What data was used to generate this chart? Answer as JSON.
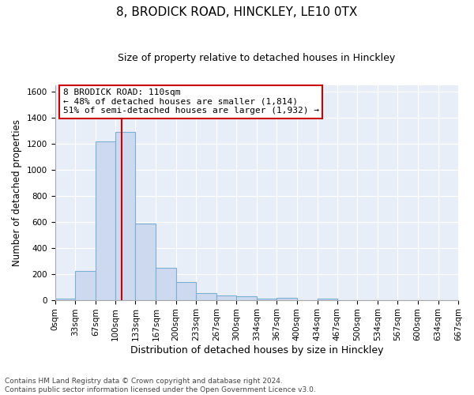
{
  "title": "8, BRODICK ROAD, HINCKLEY, LE10 0TX",
  "subtitle": "Size of property relative to detached houses in Hinckley",
  "xlabel": "Distribution of detached houses by size in Hinckley",
  "ylabel": "Number of detached properties",
  "annotation_line1": "8 BRODICK ROAD: 110sqm",
  "annotation_line2": "← 48% of detached houses are smaller (1,814)",
  "annotation_line3": "51% of semi-detached houses are larger (1,932) →",
  "bar_edges": [
    0,
    33,
    67,
    100,
    133,
    167,
    200,
    233,
    267,
    300,
    334,
    367,
    400,
    434,
    467,
    500,
    534,
    567,
    600,
    634,
    667
  ],
  "bar_heights": [
    10,
    220,
    1220,
    1290,
    590,
    245,
    140,
    55,
    35,
    25,
    10,
    15,
    0,
    10,
    0,
    0,
    0,
    0,
    0,
    0
  ],
  "bar_color": "#ccd9ee",
  "bar_edge_color": "#7bafd4",
  "ref_line_x": 110,
  "ref_line_color": "#cc0000",
  "annotation_box_color": "#ffffff",
  "annotation_box_edge_color": "#cc0000",
  "ylim": [
    0,
    1650
  ],
  "yticks": [
    0,
    200,
    400,
    600,
    800,
    1000,
    1200,
    1400,
    1600
  ],
  "xtick_labels": [
    "0sqm",
    "33sqm",
    "67sqm",
    "100sqm",
    "133sqm",
    "167sqm",
    "200sqm",
    "233sqm",
    "267sqm",
    "300sqm",
    "334sqm",
    "367sqm",
    "400sqm",
    "434sqm",
    "467sqm",
    "500sqm",
    "534sqm",
    "567sqm",
    "600sqm",
    "634sqm",
    "667sqm"
  ],
  "footer_line1": "Contains HM Land Registry data © Crown copyright and database right 2024.",
  "footer_line2": "Contains public sector information licensed under the Open Government Licence v3.0.",
  "fig_bg_color": "#ffffff",
  "plot_bg_color": "#e8eef7",
  "grid_color": "#ffffff",
  "title_fontsize": 11,
  "subtitle_fontsize": 9,
  "ylabel_fontsize": 8.5,
  "xlabel_fontsize": 9,
  "tick_fontsize": 7.5,
  "footer_fontsize": 6.5,
  "annot_fontsize": 8
}
